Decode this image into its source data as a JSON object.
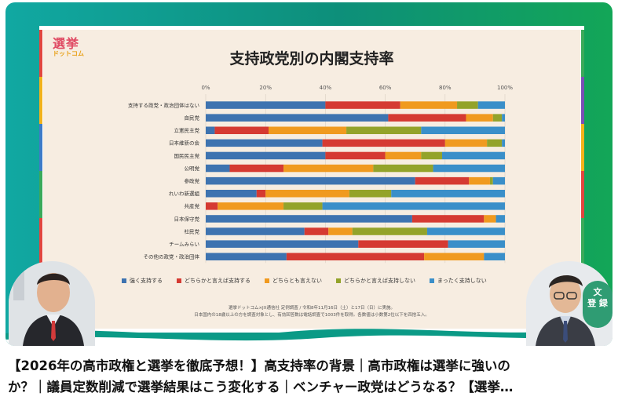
{
  "thumbnail": {
    "logo_line1": "選挙",
    "logo_line2": "ドットコム",
    "badge_line1": "文",
    "badge_line2": "登 録"
  },
  "chart_data": {
    "type": "bar",
    "stacked": "percent",
    "orientation": "horizontal",
    "title": "支持政党別の内閣支持率",
    "x_ticks": [
      "0%",
      "20%",
      "40%",
      "60%",
      "80%",
      "100%"
    ],
    "xlim": [
      0,
      100
    ],
    "categories": [
      "支持する政党・政治団体はない",
      "自民党",
      "立憲民主党",
      "日本維新の会",
      "国民民主党",
      "公明党",
      "参政党",
      "れいわ新選組",
      "共産党",
      "日本保守党",
      "社民党",
      "チームみらい",
      "その他の政党・政治団体"
    ],
    "series": [
      {
        "name": "強く支持する",
        "color": "#3e73b0",
        "values": [
          40,
          61,
          3,
          39,
          40,
          8,
          70,
          17,
          0,
          69,
          33,
          51,
          27
        ]
      },
      {
        "name": "どちらかと言えば支持する",
        "color": "#d53a32",
        "values": [
          25,
          26,
          18,
          41,
          20,
          18,
          18,
          3,
          4,
          24,
          8,
          30,
          46
        ]
      },
      {
        "name": "どちらとも言えない",
        "color": "#f09a1f",
        "values": [
          19,
          9,
          26,
          14,
          12,
          30,
          7,
          28,
          22,
          4,
          8,
          0,
          20
        ]
      },
      {
        "name": "どちらかと言えば支持しない",
        "color": "#93a32a",
        "values": [
          7,
          3,
          25,
          5,
          7,
          20,
          1,
          14,
          13,
          0,
          25,
          0,
          0
        ]
      },
      {
        "name": "まったく支持しない",
        "color": "#3a8fc9",
        "values": [
          9,
          1,
          28,
          1,
          21,
          24,
          4,
          38,
          61,
          3,
          26,
          19,
          7
        ]
      }
    ],
    "legend_position": "bottom",
    "gridlines": true
  },
  "source_note": {
    "line1": "選挙ドットコム×JX通信社 定例調査 / 令和8年11月16日（土）と17日（日）に実施。",
    "line2": "日本国内の18歳以上の方を調査対象とし、有効回答数は電話調査で1003件を取得。各数値は小数第2位以下を四捨五入。"
  },
  "video": {
    "title_line1": "【2026年の高市政権と選挙を徹底予想！】高支持率の背景｜高市政権は選挙に強いの",
    "title_line2": "か？｜議員定数削減で選挙結果はこう変化する｜ベンチャー政党はどうなる？【選挙…"
  }
}
